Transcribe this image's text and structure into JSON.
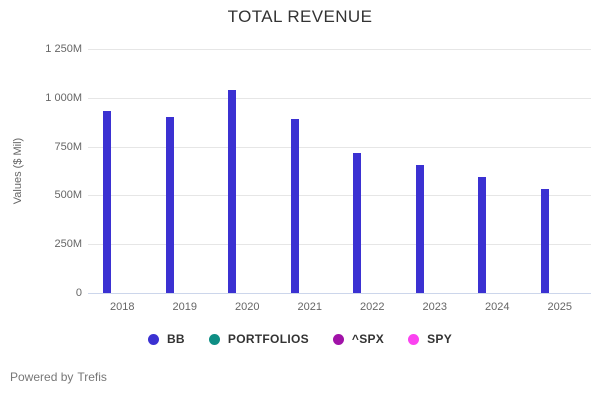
{
  "chart_data": {
    "type": "bar",
    "title": "TOTAL REVENUE",
    "ylabel": "Values ($ Mil)",
    "xlabel": "",
    "categories": [
      "2018",
      "2019",
      "2020",
      "2021",
      "2022",
      "2023",
      "2024",
      "2025"
    ],
    "series": [
      {
        "name": "BB",
        "color": "#3b31d2",
        "values": [
          932,
          904,
          1040,
          893,
          718,
          656,
          595,
          535
        ]
      },
      {
        "name": "PORTFOLIOS",
        "color": "#0e8e84",
        "values": []
      },
      {
        "name": "^SPX",
        "color": "#a112a8",
        "values": []
      },
      {
        "name": "SPY",
        "color": "#fb43f0",
        "values": []
      }
    ],
    "yticks": [
      {
        "label": "1 250M",
        "value": 1250
      },
      {
        "label": "1 000M",
        "value": 1000
      },
      {
        "label": "750M",
        "value": 750
      },
      {
        "label": "500M",
        "value": 500
      },
      {
        "label": "250M",
        "value": 250
      },
      {
        "label": "0",
        "value": 0
      }
    ],
    "ylim": [
      0,
      1250
    ],
    "grid": true,
    "legend_position": "bottom",
    "colors": {
      "gridline": "#e6e6e6",
      "axis_line": "#ccd6eb",
      "tick_text": "#666666",
      "title_text": "#333333"
    }
  },
  "footer": {
    "prefix": "Powered by",
    "brand": "Trefis"
  }
}
